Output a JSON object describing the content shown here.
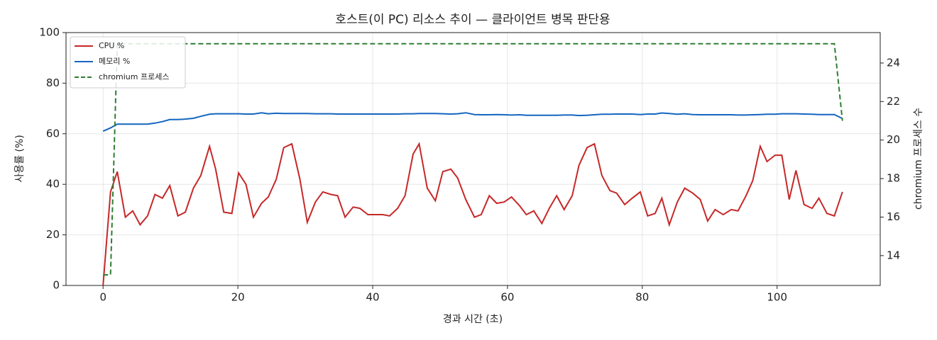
{
  "chart_data": {
    "type": "line",
    "title": "호스트(이 PC) 리소스 추이 — 클라이언트 병목 판단용",
    "x_label": "경과 시간 (초)",
    "y_label": "사용률 (%)",
    "y2_label": "chromium 프로세스 수",
    "x": [
      0,
      1.1,
      2.1,
      3.3,
      4.4,
      5.5,
      6.6,
      7.7,
      8.8,
      9.9,
      11.1,
      12.2,
      13.4,
      14.5,
      15.8,
      16.7,
      17.9,
      19.1,
      20.1,
      21.2,
      22.3,
      23.5,
      24.5,
      25.7,
      26.8,
      28.0,
      29.2,
      30.3,
      31.5,
      32.6,
      33.8,
      34.8,
      35.9,
      37.1,
      38.1,
      39.3,
      40.4,
      41.5,
      42.5,
      43.7,
      44.8,
      46.0,
      46.9,
      48.1,
      49.3,
      50.4,
      51.6,
      52.6,
      53.8,
      55.1,
      56.1,
      57.3,
      58.4,
      59.5,
      60.6,
      61.8,
      62.8,
      63.9,
      65.1,
      66.2,
      67.3,
      68.4,
      69.6,
      70.6,
      71.8,
      72.9,
      74.0,
      75.2,
      76.2,
      77.4,
      78.5,
      79.7,
      80.8,
      81.9,
      82.9,
      84.0,
      85.2,
      86.3,
      87.5,
      88.6,
      89.7,
      90.8,
      92.0,
      93.2,
      94.2,
      95.4,
      96.4,
      97.5,
      98.5,
      99.7,
      100.7,
      101.8,
      102.8,
      104.0,
      105.2,
      106.2,
      107.4,
      108.5,
      109.7
    ],
    "series": [
      {
        "name": "CPU %",
        "color": "#c62828",
        "linestyle": "solid",
        "values": [
          0,
          37,
          45,
          27,
          29.5,
          24,
          27.5,
          36,
          34.5,
          39.5,
          27.5,
          29,
          38.5,
          43.5,
          55,
          46,
          29,
          28.5,
          44.5,
          40,
          27,
          32.5,
          35,
          42,
          54.5,
          56,
          42,
          25,
          33,
          37,
          36,
          35.5,
          27,
          31,
          30.5,
          28,
          28,
          28,
          27.5,
          30.5,
          35.5,
          52,
          56,
          38.5,
          33.5,
          45,
          46,
          42.5,
          34,
          27,
          28,
          35.5,
          32.5,
          33,
          35,
          31.5,
          28,
          29.5,
          24.5,
          30.5,
          35.5,
          30,
          35.5,
          47.5,
          54.5,
          56,
          43.5,
          37.5,
          36.5,
          32,
          34.5,
          37,
          27.5,
          28.5,
          34.5,
          24,
          33,
          38.5,
          36.5,
          34,
          25.5,
          30,
          28,
          30,
          29.5,
          35.5,
          41.5,
          55,
          49,
          51.5,
          51.5,
          34,
          45.5,
          32,
          30.5,
          34.5,
          28.5,
          27.5,
          37
        ]
      },
      {
        "name": "메모리 %",
        "color": "#1565c0",
        "linestyle": "solid",
        "values": [
          61,
          62.3,
          63.8,
          63.8,
          63.8,
          63.8,
          63.8,
          64.2,
          64.8,
          65.6,
          65.6,
          65.8,
          66.1,
          66.9,
          67.7,
          67.9,
          67.9,
          67.9,
          67.9,
          67.8,
          67.8,
          68.3,
          67.9,
          68.1,
          68,
          68,
          68,
          68,
          67.9,
          67.9,
          67.9,
          67.8,
          67.8,
          67.8,
          67.8,
          67.8,
          67.8,
          67.8,
          67.8,
          67.8,
          67.9,
          67.9,
          68,
          68,
          68,
          67.9,
          67.8,
          67.9,
          68.3,
          67.6,
          67.5,
          67.5,
          67.6,
          67.5,
          67.4,
          67.5,
          67.3,
          67.3,
          67.3,
          67.3,
          67.3,
          67.4,
          67.4,
          67.2,
          67.3,
          67.5,
          67.7,
          67.7,
          67.8,
          67.8,
          67.8,
          67.6,
          67.8,
          67.8,
          68.2,
          68,
          67.7,
          67.9,
          67.6,
          67.5,
          67.5,
          67.5,
          67.5,
          67.5,
          67.4,
          67.4,
          67.5,
          67.6,
          67.7,
          67.7,
          67.9,
          67.9,
          67.9,
          67.8,
          67.7,
          67.6,
          67.6,
          67.6,
          66
        ]
      },
      {
        "name": "chromium 프로세스",
        "color": "#2e7d32",
        "linestyle": "dashed",
        "axis": "y2",
        "values": [
          13,
          13,
          25,
          25,
          25,
          25,
          25,
          25,
          25,
          25,
          25,
          25,
          25,
          25,
          25,
          25,
          25,
          25,
          25,
          25,
          25,
          25,
          25,
          25,
          25,
          25,
          25,
          25,
          25,
          25,
          25,
          25,
          25,
          25,
          25,
          25,
          25,
          25,
          25,
          25,
          25,
          25,
          25,
          25,
          25,
          25,
          25,
          25,
          25,
          25,
          25,
          25,
          25,
          25,
          25,
          25,
          25,
          25,
          25,
          25,
          25,
          25,
          25,
          25,
          25,
          25,
          25,
          25,
          25,
          25,
          25,
          25,
          25,
          25,
          25,
          25,
          25,
          25,
          25,
          25,
          25,
          25,
          25,
          25,
          25,
          25,
          25,
          25,
          25,
          25,
          25,
          25,
          25,
          25,
          25,
          25,
          25,
          25,
          21
        ]
      }
    ],
    "xlim": [
      -5.5,
      115.3
    ],
    "xticks": [
      0,
      20,
      40,
      60,
      80,
      100
    ],
    "ylim": [
      0,
      100
    ],
    "yticks": [
      0,
      20,
      40,
      60,
      80,
      100
    ],
    "y2lim": [
      12.45,
      25.58
    ],
    "y2ticks": [
      14,
      16,
      18,
      20,
      22,
      24
    ],
    "grid": true,
    "legend": "upper left"
  }
}
